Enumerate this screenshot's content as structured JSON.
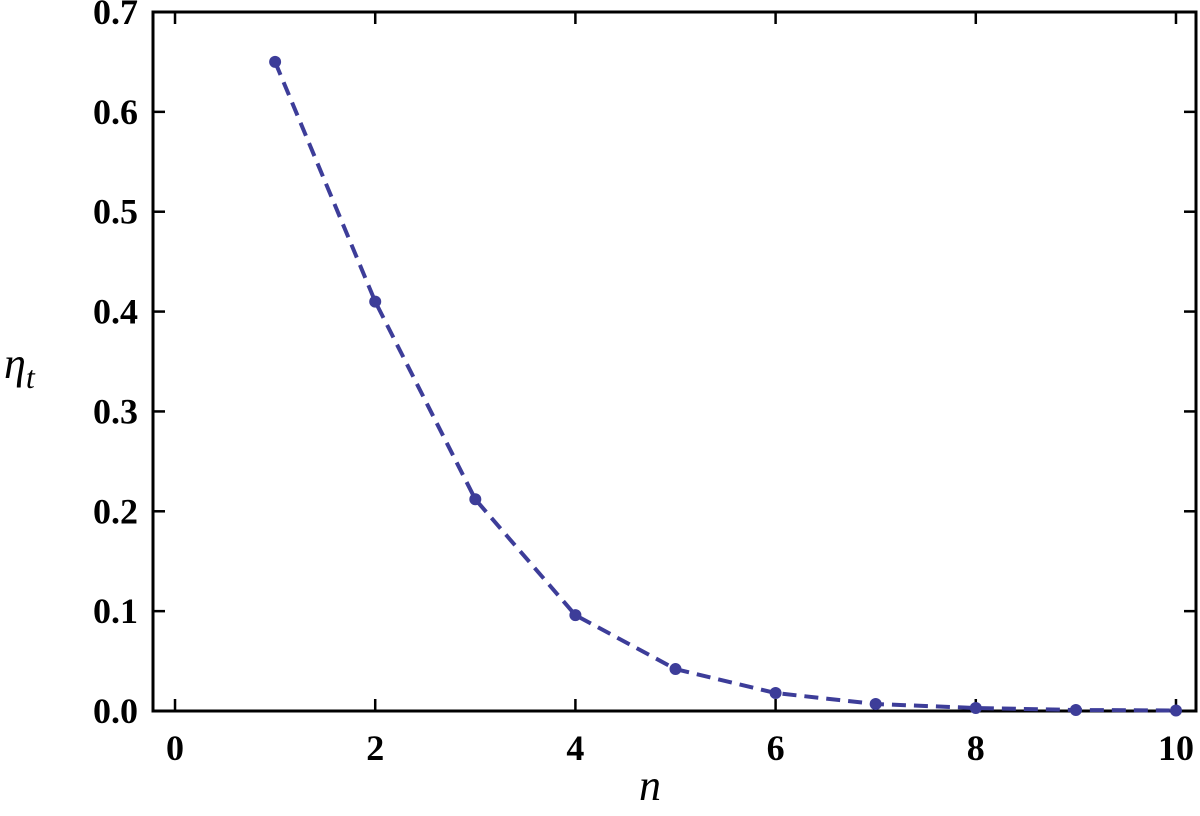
{
  "chart_data": {
    "type": "line",
    "x": [
      1,
      2,
      3,
      4,
      5,
      6,
      7,
      8,
      9,
      10
    ],
    "values": [
      0.65,
      0.41,
      0.212,
      0.096,
      0.042,
      0.018,
      0.007,
      0.003,
      0.001,
      0.0005
    ],
    "color": "#3d3d99",
    "line_style": "dashed",
    "markers": true,
    "xlabel": "n",
    "ylabel": {
      "symbol": "η",
      "subscript": "t"
    },
    "xlim": [
      -0.22,
      10.2
    ],
    "ylim": [
      0,
      0.7
    ],
    "xticks": [
      0,
      2,
      4,
      6,
      8,
      10
    ],
    "yticks": [
      {
        "value": 0,
        "label": "0.0"
      },
      0.1,
      0.2,
      0.3,
      0.4,
      0.5,
      0.6,
      0.7
    ],
    "grid": false
  }
}
